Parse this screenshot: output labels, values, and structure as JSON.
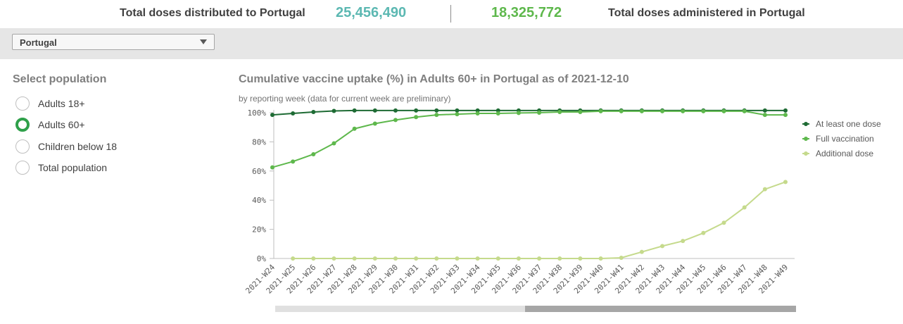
{
  "kpi": {
    "distributed_label": "Total doses distributed to Portugal",
    "distributed_value": "25,456,490",
    "administered_value": "18,325,772",
    "administered_label": "Total doses administered in Portugal",
    "distributed_color": "#5cb8b2",
    "administered_color": "#5eb84c"
  },
  "filter": {
    "country": "Portugal",
    "icon": "chevron-down-icon"
  },
  "population": {
    "title": "Select population",
    "options": [
      {
        "label": "Adults 18+",
        "selected": false
      },
      {
        "label": "Adults 60+",
        "selected": true
      },
      {
        "label": "Children below 18",
        "selected": false
      },
      {
        "label": "Total population",
        "selected": false
      }
    ]
  },
  "chart_data": {
    "type": "line",
    "title": "Cumulative vaccine uptake (%) in Adults 60+ in Portugal as of 2021-12-10",
    "subtitle": "by reporting week (data for current week are preliminary)",
    "xlabel": "",
    "ylabel": "",
    "ylim": [
      0,
      100
    ],
    "yticks": [
      "0%",
      "20%",
      "40%",
      "60%",
      "80%",
      "100%"
    ],
    "grid": false,
    "legend_position": "right",
    "categories": [
      "2021-W24",
      "2021-W25",
      "2021-W26",
      "2021-W27",
      "2021-W28",
      "2021-W29",
      "2021-W30",
      "2021-W31",
      "2021-W32",
      "2021-W33",
      "2021-W34",
      "2021-W35",
      "2021-W36",
      "2021-W37",
      "2021-W38",
      "2021-W39",
      "2021-W40",
      "2021-W41",
      "2021-W42",
      "2021-W43",
      "2021-W44",
      "2021-W45",
      "2021-W46",
      "2021-W47",
      "2021-W48",
      "2021-W49"
    ],
    "series": [
      {
        "name": "At least one dose",
        "color": "#1e6b34",
        "values": [
          98.5,
          99.5,
          100.5,
          101.2,
          101.5,
          101.5,
          101.5,
          101.5,
          101.5,
          101.5,
          101.5,
          101.5,
          101.5,
          101.5,
          101.5,
          101.5,
          101.5,
          101.5,
          101.5,
          101.5,
          101.5,
          101.5,
          101.5,
          101.5,
          101.5,
          101.5
        ]
      },
      {
        "name": "Full vaccination",
        "color": "#5eb84c",
        "values": [
          62.5,
          66.5,
          71.5,
          79,
          89,
          92.5,
          95,
          97,
          98.5,
          99,
          99.5,
          99.5,
          99.8,
          100,
          100.5,
          100.5,
          101,
          101,
          101,
          101,
          101,
          101,
          101,
          101,
          98.5,
          98.5
        ]
      },
      {
        "name": "Additional dose",
        "color": "#c5da8c",
        "values": [
          null,
          0,
          0,
          0,
          0,
          0,
          0,
          0,
          0,
          0,
          0,
          0,
          0,
          0,
          0,
          0,
          0,
          0.5,
          4.5,
          8.5,
          12,
          17.5,
          24.5,
          35,
          47.5,
          52.5
        ]
      }
    ]
  },
  "scrollbar": {
    "visible_fraction": 0.52
  }
}
